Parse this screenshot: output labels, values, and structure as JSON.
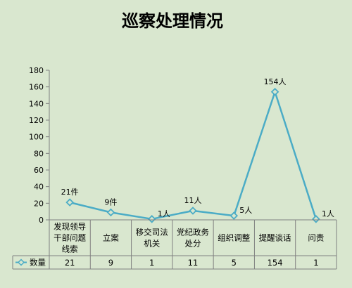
{
  "chart_data": {
    "type": "line",
    "title": "巡察处理情况",
    "categories": [
      [
        "发现领导",
        "干部问题",
        "线索"
      ],
      [
        "立案"
      ],
      [
        "移交司法",
        "机关"
      ],
      [
        "党纪政务",
        "处分"
      ],
      [
        "组织调整"
      ],
      [
        "提醒谈话"
      ],
      [
        "问责"
      ]
    ],
    "series": [
      {
        "name": "数量",
        "values": [
          21,
          9,
          1,
          11,
          5,
          154,
          1
        ],
        "data_labels": [
          "21件",
          "9件",
          "1人",
          "11人",
          "5人",
          "154人",
          "1人"
        ],
        "table_values": [
          "21",
          "9",
          "1",
          "11",
          "5",
          "154",
          "1"
        ],
        "color": "#4bacc6"
      }
    ],
    "ylim": [
      0,
      180
    ],
    "y_ticks": [
      0,
      20,
      40,
      60,
      80,
      100,
      120,
      140,
      160,
      180
    ],
    "grid": false,
    "legend": "data-table-left"
  }
}
